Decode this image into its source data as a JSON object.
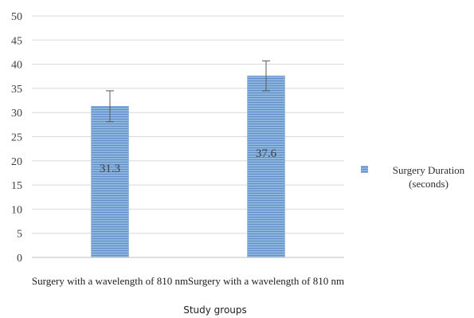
{
  "chart_data": {
    "type": "bar",
    "categories": [
      "Surgery with a wavelength of 810 nm",
      "Surgery with a wavelength of 810 nm"
    ],
    "series": [
      {
        "name": "Surgery Duration (seconds)",
        "values": [
          31.3,
          37.6
        ],
        "errors": [
          3.2,
          3.1
        ],
        "color": "#7ea9d6"
      }
    ],
    "data_labels": [
      "31.3",
      "37.6"
    ],
    "title": "",
    "xlabel": "Study groups",
    "ylabel": "",
    "ylim": [
      0,
      50
    ],
    "yticks": [
      0,
      5,
      10,
      15,
      20,
      25,
      30,
      35,
      40,
      45,
      50
    ],
    "grid": true,
    "legend_position": "right",
    "legend": {
      "line1": "Surgery Duration",
      "line2": "(seconds)"
    }
  }
}
